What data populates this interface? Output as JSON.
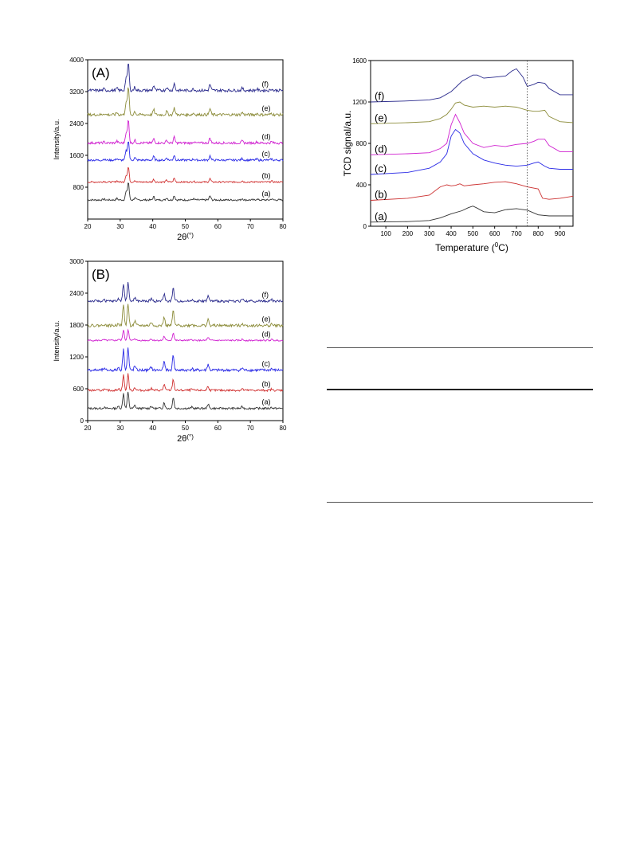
{
  "chart_data": [
    {
      "type": "line",
      "panel_label": "(A)",
      "xlabel": "2θ(°)",
      "ylabel": "Intensity/a.u.",
      "xlim": [
        20,
        80
      ],
      "ylim": [
        0,
        4000
      ],
      "xticks": [
        "20",
        "30",
        "40",
        "50",
        "60",
        "70",
        "80"
      ],
      "yticks": [
        "800",
        "1600",
        "2400",
        "3200",
        "4000"
      ],
      "ytick_values": [
        800,
        1600,
        2400,
        3200,
        4000
      ],
      "peaks": [
        [
          25,
          0.05
        ],
        [
          29,
          0.08
        ],
        [
          31.8,
          0.45
        ],
        [
          32.5,
          1.0
        ],
        [
          34.5,
          0.12
        ],
        [
          40.3,
          0.18
        ],
        [
          44.3,
          0.12
        ],
        [
          46.6,
          0.25
        ],
        [
          52.5,
          0.06
        ],
        [
          57.6,
          0.22
        ],
        [
          67.5,
          0.08
        ],
        [
          72,
          0.05
        ],
        [
          76.5,
          0.06
        ]
      ],
      "grid": false,
      "series": [
        {
          "name": "(a)",
          "color": "#333333",
          "baseline": 480,
          "scale": 450
        },
        {
          "name": "(b)",
          "color": "#d03030",
          "baseline": 930,
          "scale": 380
        },
        {
          "name": "(c)",
          "color": "#2a2ae6",
          "baseline": 1480,
          "scale": 500
        },
        {
          "name": "(d)",
          "color": "#d020d0",
          "baseline": 1910,
          "scale": 580
        },
        {
          "name": "(e)",
          "color": "#8c8c3a",
          "baseline": 2620,
          "scale": 700
        },
        {
          "name": "(f)",
          "color": "#2a2a8c",
          "baseline": 3230,
          "scale": 700
        }
      ]
    },
    {
      "type": "line",
      "panel_label": "(B)",
      "xlabel": "2θ(°)",
      "ylabel": "Intensity/a.u.",
      "xlim": [
        20,
        80
      ],
      "ylim": [
        0,
        3000
      ],
      "xticks": [
        "20",
        "30",
        "40",
        "50",
        "60",
        "70",
        "80"
      ],
      "yticks": [
        "0",
        "600",
        "1200",
        "1800",
        "2400",
        "3000"
      ],
      "ytick_values": [
        0,
        600,
        1200,
        1800,
        2400,
        3000
      ],
      "peaks": [
        [
          25,
          0.05
        ],
        [
          29.5,
          0.1
        ],
        [
          31,
          0.75
        ],
        [
          32.4,
          0.8
        ],
        [
          34.5,
          0.15
        ],
        [
          39.5,
          0.12
        ],
        [
          43.5,
          0.3
        ],
        [
          46.3,
          0.55
        ],
        [
          52,
          0.06
        ],
        [
          57,
          0.22
        ],
        [
          67.5,
          0.08
        ],
        [
          76.5,
          0.06
        ]
      ],
      "grid": false,
      "series": [
        {
          "name": "(a)",
          "color": "#333333",
          "baseline": 230,
          "scale": 380
        },
        {
          "name": "(b)",
          "color": "#d03030",
          "baseline": 570,
          "scale": 380
        },
        {
          "name": "(c)",
          "color": "#2a2ae6",
          "baseline": 950,
          "scale": 520
        },
        {
          "name": "(d)",
          "color": "#d020d0",
          "baseline": 1510,
          "scale": 260
        },
        {
          "name": "(e)",
          "color": "#8c8c3a",
          "baseline": 1790,
          "scale": 520
        },
        {
          "name": "(f)",
          "color": "#2a2a8c",
          "baseline": 2250,
          "scale": 450
        }
      ]
    },
    {
      "type": "line",
      "xlabel": "Temperature (0C)",
      "xlabel_main": "Temperature (",
      "xlabel_sup": "0",
      "xlabel_end": "C)",
      "ylabel": "TCD signal/a.u.",
      "xlim": [
        30,
        960
      ],
      "ylim": [
        0,
        1600
      ],
      "xticks": [
        "100",
        "200",
        "300",
        "400",
        "500",
        "600",
        "700",
        "800",
        "900"
      ],
      "xtick_values": [
        100,
        200,
        300,
        400,
        500,
        600,
        700,
        800,
        900
      ],
      "yticks": [
        "0",
        "400",
        "800",
        "1200",
        "1600"
      ],
      "ytick_values": [
        0,
        400,
        800,
        1200,
        1600
      ],
      "reference_line_x": 750,
      "grid": false,
      "series": [
        {
          "name": "(a)",
          "color": "#333333",
          "x": [
            30,
            200,
            300,
            350,
            400,
            450,
            480,
            500,
            520,
            550,
            600,
            650,
            700,
            750,
            800,
            850,
            900,
            960
          ],
          "y": [
            40,
            45,
            55,
            80,
            120,
            150,
            180,
            195,
            175,
            140,
            130,
            160,
            170,
            155,
            110,
            100,
            100,
            100
          ]
        },
        {
          "name": "(b)",
          "color": "#cc3030",
          "x": [
            30,
            200,
            300,
            350,
            380,
            400,
            420,
            440,
            460,
            500,
            550,
            600,
            650,
            700,
            750,
            800,
            820,
            850,
            900,
            960
          ],
          "y": [
            250,
            270,
            300,
            380,
            400,
            390,
            395,
            410,
            390,
            400,
            410,
            425,
            430,
            410,
            380,
            360,
            270,
            260,
            270,
            290
          ]
        },
        {
          "name": "(c)",
          "color": "#2a2ae6",
          "x": [
            30,
            200,
            300,
            350,
            380,
            400,
            420,
            440,
            460,
            500,
            550,
            600,
            650,
            700,
            750,
            780,
            800,
            830,
            850,
            900,
            960
          ],
          "y": [
            500,
            520,
            560,
            620,
            700,
            870,
            935,
            900,
            800,
            700,
            640,
            610,
            590,
            580,
            590,
            610,
            620,
            580,
            560,
            550,
            550
          ]
        },
        {
          "name": "(d)",
          "color": "#d020d0",
          "x": [
            30,
            200,
            300,
            350,
            380,
            400,
            420,
            440,
            460,
            500,
            550,
            600,
            650,
            700,
            750,
            780,
            800,
            830,
            850,
            900,
            960
          ],
          "y": [
            690,
            700,
            710,
            750,
            800,
            980,
            1080,
            1000,
            900,
            800,
            760,
            780,
            770,
            790,
            800,
            820,
            840,
            840,
            780,
            720,
            720
          ]
        },
        {
          "name": "(e)",
          "color": "#8c8c3a",
          "x": [
            30,
            200,
            300,
            350,
            380,
            400,
            420,
            440,
            460,
            500,
            550,
            600,
            650,
            700,
            750,
            780,
            800,
            830,
            850,
            900,
            960
          ],
          "y": [
            990,
            1000,
            1010,
            1040,
            1080,
            1130,
            1190,
            1200,
            1170,
            1150,
            1160,
            1150,
            1160,
            1150,
            1120,
            1110,
            1110,
            1120,
            1060,
            1010,
            1000
          ]
        },
        {
          "name": "(f)",
          "color": "#2a2a8c",
          "x": [
            30,
            200,
            300,
            350,
            400,
            450,
            500,
            520,
            550,
            600,
            650,
            680,
            700,
            730,
            750,
            780,
            800,
            830,
            850,
            900,
            960
          ],
          "y": [
            1200,
            1210,
            1220,
            1240,
            1300,
            1400,
            1460,
            1460,
            1430,
            1440,
            1450,
            1500,
            1520,
            1440,
            1350,
            1370,
            1390,
            1380,
            1330,
            1270,
            1270
          ]
        }
      ]
    }
  ]
}
